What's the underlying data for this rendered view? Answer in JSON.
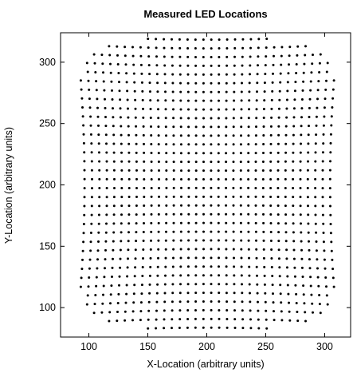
{
  "chart_data": {
    "type": "scatter",
    "title": "Measured LED Locations",
    "xlabel": "X-Location (arbitrary units)",
    "ylabel": "Y-Location (arbitrary units)",
    "xlim": [
      76,
      322
    ],
    "ylim": [
      76,
      324
    ],
    "xticks": [
      100,
      150,
      200,
      250,
      300
    ],
    "yticks": [
      100,
      150,
      200,
      250,
      300
    ],
    "grid": false,
    "marker_color": "#000000",
    "series": [
      {
        "description": "Grid of measured LED positions (approx. 36 columns x 34 rows) bounded by a rounded-square outline",
        "grid_model": {
          "columns": 36,
          "rows": 34,
          "x_range": [
            83,
            318
          ],
          "y_range": [
            80,
            322
          ],
          "outline_exponent": 4.5
        }
      }
    ]
  }
}
